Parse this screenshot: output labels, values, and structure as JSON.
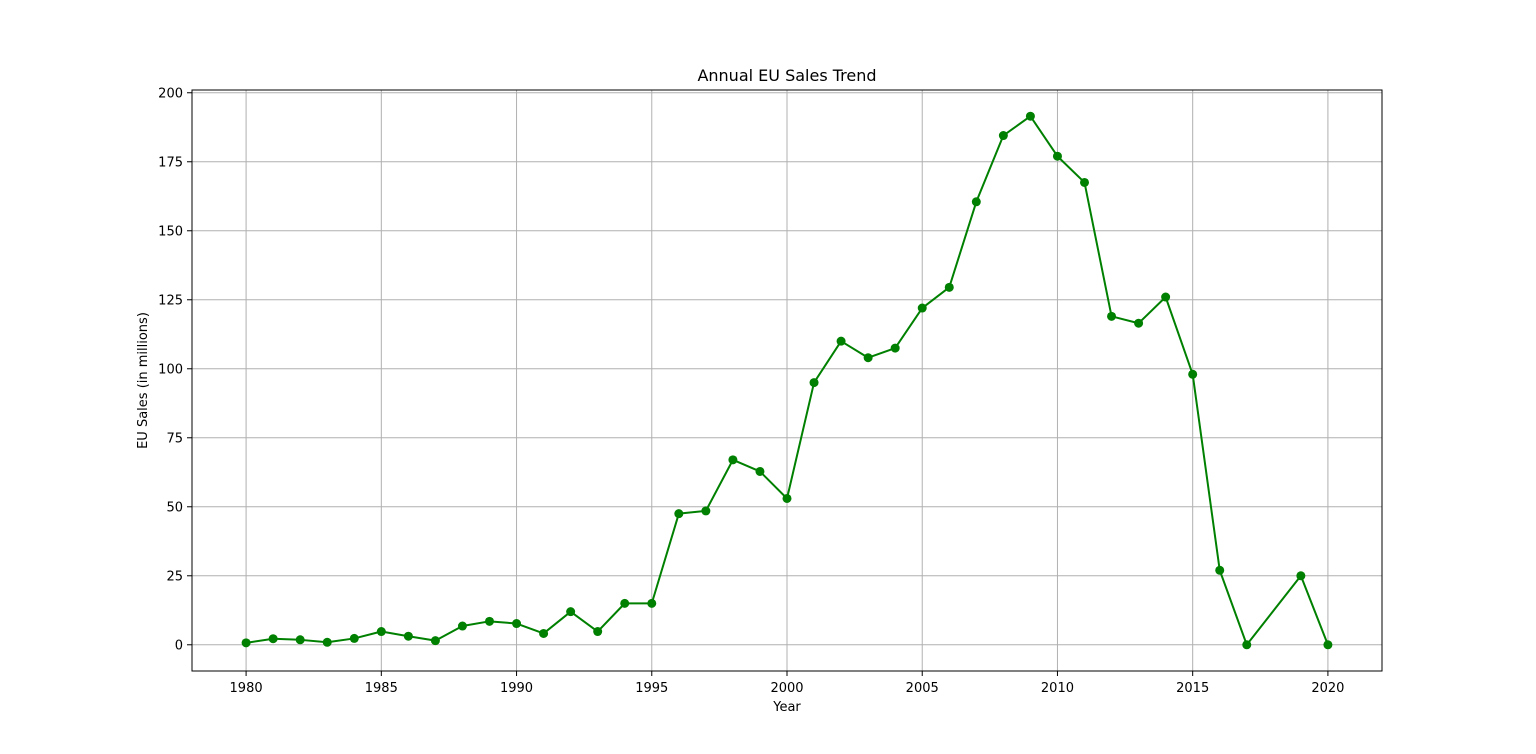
{
  "chart_data": {
    "type": "line",
    "title": "Annual EU Sales Trend",
    "xlabel": "Year",
    "ylabel": "EU Sales (in millions)",
    "xlim": [
      1978,
      2022
    ],
    "ylim": [
      -9.5,
      201
    ],
    "x_ticks": [
      1980,
      1985,
      1990,
      1995,
      2000,
      2005,
      2010,
      2015,
      2020
    ],
    "y_ticks": [
      0,
      25,
      50,
      75,
      100,
      125,
      150,
      175,
      200
    ],
    "grid": true,
    "legend": "none",
    "colors": {
      "line": "#008000",
      "grid": "#b0b0b0",
      "axes": "#000000"
    },
    "series": [
      {
        "x": [
          1980,
          1981,
          1982,
          1983,
          1984,
          1985,
          1986,
          1987,
          1988,
          1989,
          1990,
          1991,
          1992,
          1993,
          1994,
          1995,
          1996,
          1997,
          1998,
          1999,
          2000,
          2001,
          2002,
          2003,
          2004,
          2005,
          2006,
          2007,
          2008,
          2009,
          2010,
          2011,
          2012,
          2013,
          2014,
          2015,
          2016,
          2017,
          2019,
          2020
        ],
        "y": [
          0.7,
          2.2,
          1.8,
          0.9,
          2.3,
          4.8,
          3.1,
          1.5,
          6.8,
          8.5,
          7.7,
          4.1,
          12.0,
          4.8,
          15.0,
          15.0,
          47.5,
          48.5,
          67.0,
          62.8,
          53.0,
          95.0,
          110.0,
          104.0,
          107.5,
          122.0,
          129.5,
          160.5,
          184.5,
          191.5,
          177.0,
          167.5,
          119.0,
          116.5,
          126.0,
          98.0,
          27.0,
          0.0,
          25.0,
          0.0
        ]
      }
    ]
  }
}
